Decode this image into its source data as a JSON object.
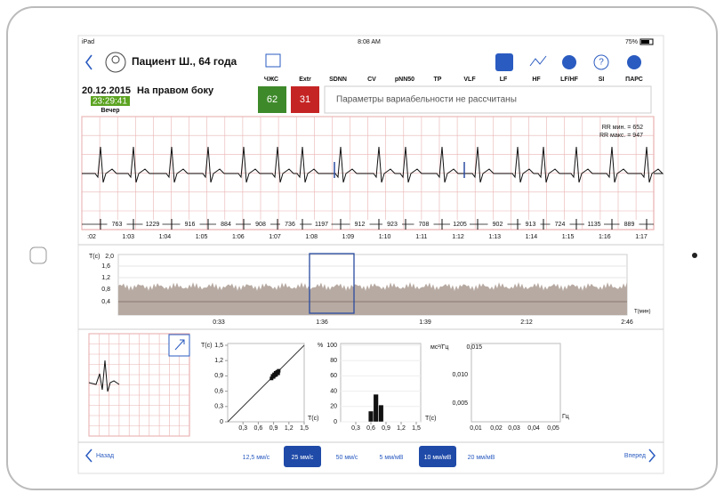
{
  "status": {
    "device": "iPad",
    "time": "8:08 AM",
    "battery": "75%"
  },
  "header": {
    "patient": "Пациент Ш., 64 года",
    "metrics": [
      "ЧЖС",
      "Extr",
      "SDNN",
      "CV",
      "pNN50",
      "TP",
      "VLF",
      "LF",
      "HF",
      "LF/HF",
      "SI",
      "ПАРС"
    ],
    "date": "20.12.2015",
    "position": "На правом боку",
    "clock": "23:29:41",
    "period": "Вечер",
    "hr": "62",
    "extr": "31",
    "message": "Параметры вариабельности не рассчитаны"
  },
  "ecg": {
    "rr_min": "RR мин. = 652",
    "rr_max": "RR макс. = 947",
    "rr": [
      "763",
      "1229",
      "916",
      "884",
      "908",
      "736",
      "1197",
      "912",
      "923",
      "708",
      "1205",
      "902",
      "913",
      "724",
      "1135",
      "889"
    ],
    "times": [
      ":02",
      "1:03",
      "1:04",
      "1:05",
      "1:06",
      "1:07",
      "1:08",
      "1:09",
      "1:10",
      "1:11",
      "1:12",
      "1:13",
      "1:14",
      "1:15",
      "1:16",
      "1:17"
    ]
  },
  "trend": {
    "y_label": "T(с)",
    "yticks": [
      "2,0",
      "1,6",
      "1,2",
      "0,8",
      "0,4"
    ],
    "xticks": [
      "0:33",
      "1:36",
      "1:39",
      "2:12",
      "2:46"
    ],
    "x_label": "T(мин)"
  },
  "scatter": {
    "y_label": "T(с)",
    "x_label": "T(с)",
    "xlim": [
      0,
      1.5
    ],
    "yticks": [
      {
        "value": 1.5,
        "label": "1,5"
      },
      {
        "value": 1.2,
        "label": "1,2"
      },
      {
        "value": 0.9,
        "label": "0,9"
      },
      {
        "value": 0.6,
        "label": "0,6"
      },
      {
        "value": 0.3,
        "label": "0,3"
      },
      0
    ],
    "xticks": [
      {
        "value": 0.3,
        "label": "0,3"
      },
      {
        "value": 0.6,
        "label": "0,6"
      },
      {
        "value": 0.9,
        "label": "0,9"
      },
      {
        "value": 1.2,
        "label": "1,2"
      },
      {
        "value": 1.5,
        "label": "1,5"
      }
    ],
    "x": [
      0.86,
      0.88,
      0.9,
      0.91,
      0.92,
      0.94,
      0.95,
      0.97,
      0.99,
      1.0
    ],
    "y": [
      0.85,
      0.9,
      0.88,
      0.93,
      0.91,
      0.96,
      0.92,
      0.98,
      0.95,
      1.0
    ]
  },
  "histogram": {
    "y_label": "%",
    "x_label": "T(с)",
    "xlim": [
      0,
      1.5
    ],
    "yticks": [
      100,
      80,
      60,
      40,
      20,
      0
    ],
    "xticks": [
      {
        "value": 0.3,
        "label": "0,3"
      },
      {
        "value": 0.6,
        "label": "0,6"
      },
      {
        "value": 0.9,
        "label": "0,9"
      },
      {
        "value": 1.2,
        "label": "1,2"
      },
      {
        "value": 1.5,
        "label": "1,5"
      }
    ],
    "bins": [
      0.55,
      0.65,
      0.75,
      0.85
    ],
    "values": [
      14,
      36,
      22
    ]
  },
  "spectrum": {
    "y_label": "мс²/Гц",
    "yticks": [
      "0,015",
      "0,010",
      "0,005"
    ],
    "xticks": [
      "0,01",
      "0,02",
      "0,03",
      "0,04",
      "0,05"
    ],
    "x_label": "Гц"
  },
  "footer": {
    "back": "Назад",
    "forward": "Вперед",
    "speeds": [
      "12,5 мм/с",
      "25 мм/с",
      "50 мм/с"
    ],
    "gains": [
      "5 мм/мВ",
      "10 мм/мВ",
      "20 мм/мВ"
    ],
    "selected_speed": 1,
    "selected_gain": 1
  }
}
